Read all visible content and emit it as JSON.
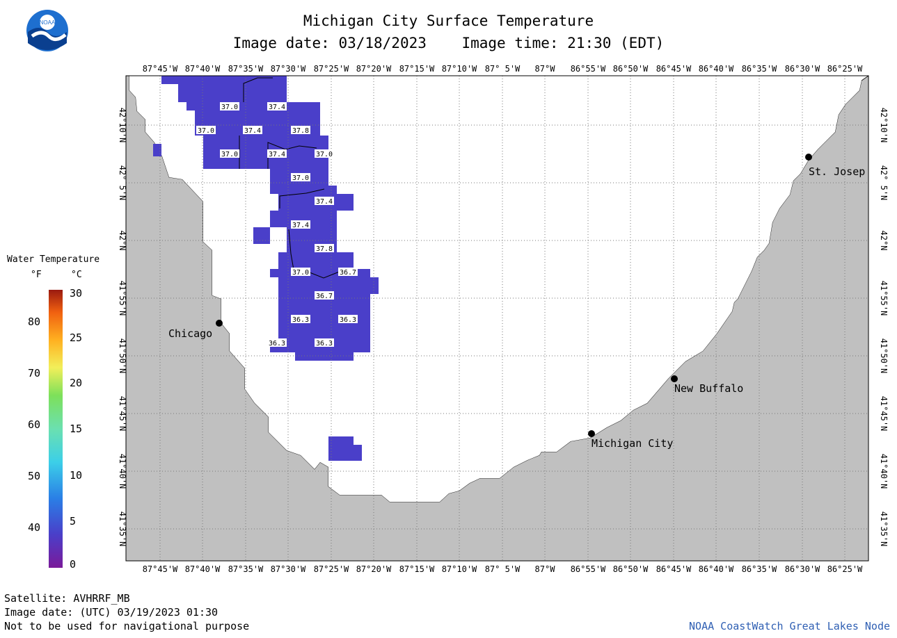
{
  "header": {
    "title": "Michigan City Surface Temperature",
    "subtitle": "Image date: 03/18/2023    Image time: 21:30 (EDT)"
  },
  "legend": {
    "title": "Water Temperature",
    "unit_f": "°F",
    "unit_c": "°C",
    "f_ticks": [
      "80",
      "70",
      "60",
      "50",
      "40"
    ],
    "c_ticks": [
      "30",
      "25",
      "20",
      "15",
      "10",
      "5",
      "0"
    ]
  },
  "map": {
    "lon_labels": [
      "87°45'W",
      "87°40'W",
      "87°35'W",
      "87°30'W",
      "87°25'W",
      "87°20'W",
      "87°15'W",
      "87°10'W",
      "87° 5'W",
      "87°W",
      "86°55'W",
      "86°50'W",
      "86°45'W",
      "86°40'W",
      "86°35'W",
      "86°30'W",
      "86°25'W"
    ],
    "lat_labels": [
      "42°10'N",
      "42° 5'N",
      "42°N",
      "41°55'N",
      "41°50'N",
      "41°45'N",
      "41°40'N",
      "41°35'N"
    ],
    "cities": [
      {
        "name": "Chicago"
      },
      {
        "name": "St. Josep"
      },
      {
        "name": "New Buffalo"
      },
      {
        "name": "Michigan City"
      }
    ],
    "temperature_labels": [
      "37.0",
      "37.4",
      "37.0",
      "37.4",
      "37.8",
      "37.0",
      "37.4",
      "37.0",
      "37.0",
      "37.4",
      "37.4",
      "37.8",
      "37.0",
      "36.7",
      "36.7",
      "36.3",
      "36.3",
      "36.3",
      "36.3"
    ],
    "colors": {
      "water_data": "#4a3fc9",
      "land": "#c0c0c0",
      "lake": "#ffffff"
    }
  },
  "footer": {
    "satellite": "Satellite: AVHRRF_MB",
    "utc_date": "Image date: (UTC) 03/19/2023  01:30",
    "disclaimer": "Not to be used for navigational purpose",
    "credit": "NOAA CoastWatch Great Lakes Node"
  }
}
